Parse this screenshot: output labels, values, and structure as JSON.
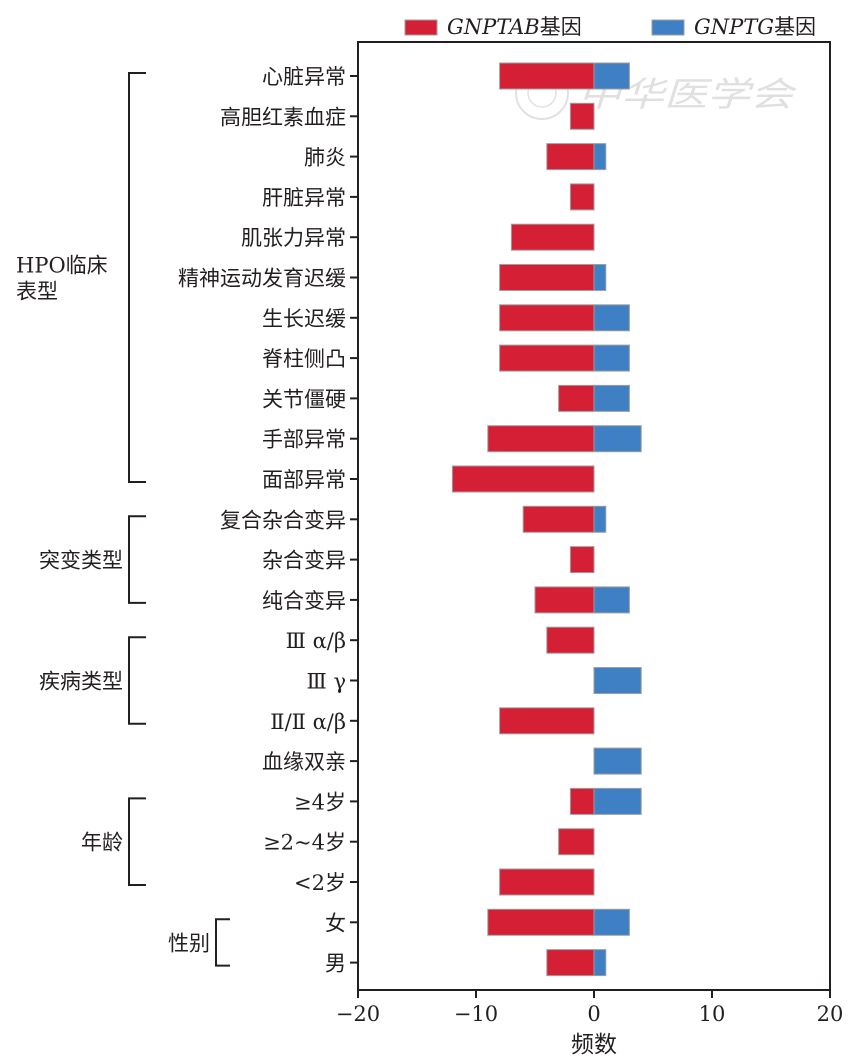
{
  "chart_data": {
    "type": "bar",
    "orientation": "horizontal",
    "stacking": "diverging",
    "xlabel": "频数",
    "xlim": [
      -20,
      20
    ],
    "xticks": [
      -20,
      -10,
      0,
      10,
      20
    ],
    "xtick_labels": [
      "−20",
      "−10",
      "0",
      "10",
      "20"
    ],
    "grid": false,
    "legend_position": "top",
    "colors": {
      "GNPTAB": "#d41f34",
      "GNPTG": "#3f7fc4"
    },
    "legend": [
      {
        "key": "GNPTAB",
        "name_italic": "GNPTAB",
        "suffix": "基因"
      },
      {
        "key": "GNPTG",
        "name_italic": "GNPTG",
        "suffix": "基因"
      }
    ],
    "categories": [
      "心脏异常",
      "高胆红素血症",
      "肺炎",
      "肝脏异常",
      "肌张力异常",
      "精神运动发育迟缓",
      "生长迟缓",
      "脊柱侧凸",
      "关节僵硬",
      "手部异常",
      "面部异常",
      "复合杂合变异",
      "杂合变异",
      "纯合变异",
      "Ⅲ α/β",
      "Ⅲ γ",
      "Ⅱ/Ⅱ α/β",
      "血缘双亲",
      "≥4岁",
      "≥2~4岁",
      "<2岁",
      "女",
      "男"
    ],
    "series": [
      {
        "key": "GNPTAB",
        "values": [
          -8,
          -2,
          -4,
          -2,
          -7,
          -8,
          -8,
          -8,
          -3,
          -9,
          -12,
          -6,
          -2,
          -5,
          -4,
          0,
          -8,
          0,
          -2,
          -3,
          -8,
          -9,
          -4
        ]
      },
      {
        "key": "GNPTG",
        "values": [
          3,
          0,
          1,
          0,
          0,
          1,
          3,
          3,
          3,
          4,
          0,
          1,
          0,
          3,
          0,
          4,
          0,
          4,
          4,
          0,
          0,
          3,
          1
        ]
      }
    ],
    "groups": [
      {
        "label_lines": [
          "HPO临床",
          "表型"
        ],
        "start": 0,
        "end": 10
      },
      {
        "label_lines": [
          "突变类型"
        ],
        "start": 11,
        "end": 13
      },
      {
        "label_lines": [
          "疾病类型"
        ],
        "start": 14,
        "end": 16
      },
      {
        "label_lines": [
          "年龄"
        ],
        "start": 18,
        "end": 20
      },
      {
        "label_lines": [
          "性别"
        ],
        "start": 21,
        "end": 22
      }
    ],
    "watermark": "中华医学会"
  }
}
